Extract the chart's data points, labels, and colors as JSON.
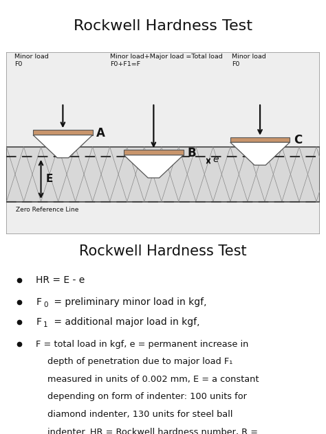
{
  "title1": "Rockwell Hardness Test",
  "title2": "Rockwell Hardness Test",
  "indenter_fill": "#c8956c",
  "indenter_edge": "#555555",
  "arrow_color": "#111111",
  "dashed_color": "#333333",
  "text_minor_load_A": "Minor load\nF0",
  "text_major_load": "Minor load+Major load =Total load\nF0+F1=F",
  "text_minor_load_C": "Minor load\nF0",
  "text_zero_ref": "Zero Reference Line",
  "background_color": "#ffffff",
  "box_bg": "#eeeeee",
  "slab_bg": "#d8d8d8",
  "slab_line": "#444444"
}
